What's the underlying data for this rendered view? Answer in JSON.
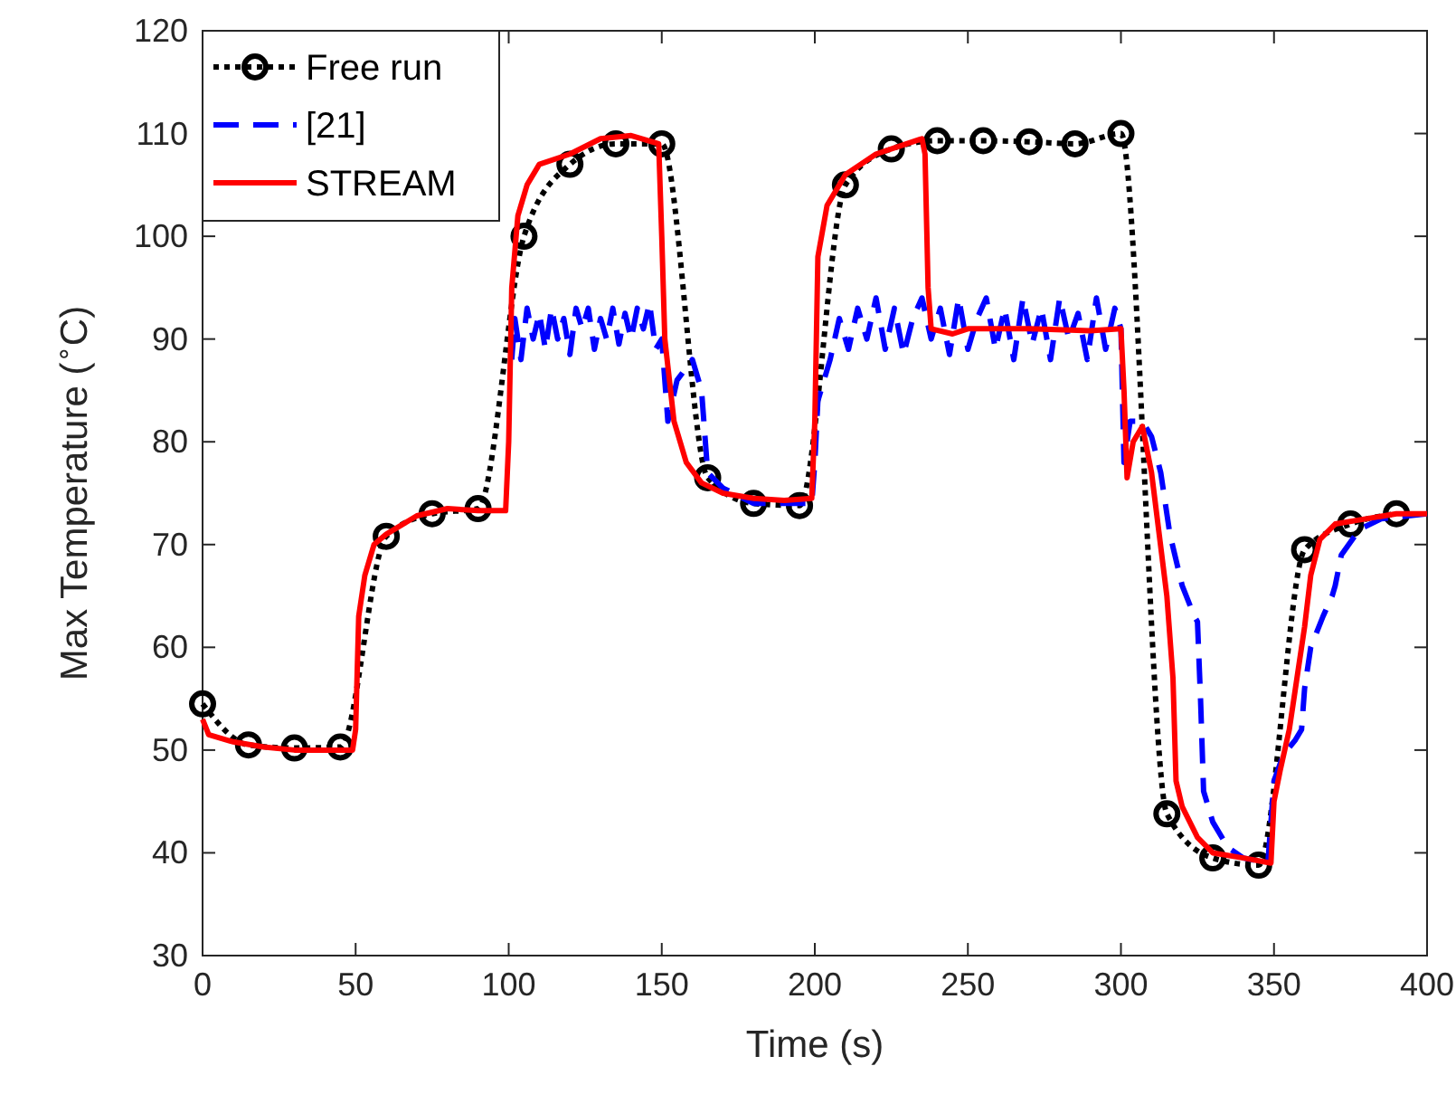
{
  "chart_data": {
    "type": "line",
    "xlabel": "Time (s)",
    "ylabel": "Max Temperature ($^{∘}$C)",
    "xlim": [
      0,
      400
    ],
    "ylim": [
      30,
      120
    ],
    "xticks": [
      0,
      50,
      100,
      150,
      200,
      250,
      300,
      350,
      400
    ],
    "yticks": [
      30,
      40,
      50,
      60,
      70,
      80,
      90,
      100,
      110,
      120
    ],
    "legend": "top left",
    "grid": false,
    "series": [
      {
        "name": "Free run",
        "color": "#000000",
        "line_style": "dotted",
        "marker": "circle",
        "x": [
          0,
          15,
          30,
          45,
          60,
          75,
          90,
          105,
          120,
          135,
          150,
          165,
          180,
          195,
          210,
          225,
          240,
          255,
          270,
          285,
          300,
          315,
          330,
          345,
          360,
          375,
          390
        ],
        "values": [
          54.5,
          50.5,
          50.2,
          50.3,
          70.8,
          73,
          73.5,
          100,
          107,
          109,
          109,
          76.5,
          74,
          73.8,
          105,
          108.5,
          109.3,
          109.3,
          109.2,
          109,
          110,
          43.8,
          39.5,
          38.8,
          69.5,
          72,
          73
        ]
      },
      {
        "name": "[21]",
        "color": "#0000ff",
        "line_style": "dashed",
        "marker": "none",
        "x": [
          101,
          102,
          104,
          106,
          108,
          110,
          112,
          114,
          116,
          118,
          120,
          122,
          124,
          126,
          128,
          130,
          132,
          134,
          136,
          138,
          140,
          142,
          144,
          146,
          148,
          150,
          152,
          155,
          160,
          163,
          165,
          170,
          180,
          190,
          199,
          200,
          201,
          205,
          208,
          211,
          214,
          217,
          220,
          223,
          226,
          229,
          232,
          235,
          238,
          241,
          244,
          247,
          250,
          253,
          256,
          259,
          262,
          265,
          268,
          271,
          274,
          277,
          280,
          283,
          286,
          289,
          292,
          295,
          298,
          300,
          301,
          303,
          307,
          310,
          313,
          316,
          320,
          324,
          325,
          326,
          327,
          330,
          335,
          340,
          348,
          350,
          353,
          357,
          359,
          360,
          362,
          366,
          369,
          370,
          372,
          378,
          385,
          400
        ],
        "values": [
          88,
          92,
          88,
          93,
          90,
          92.5,
          89,
          93,
          90,
          92,
          88.5,
          93,
          91,
          93,
          89,
          92,
          90,
          93,
          89.5,
          92.5,
          90,
          93,
          91,
          93.5,
          89,
          90,
          82,
          86,
          88,
          85,
          77,
          75.5,
          74,
          74,
          74,
          78,
          84,
          88,
          92,
          89,
          93,
          90,
          94,
          89,
          93,
          88.5,
          92,
          94,
          90,
          93,
          88.5,
          94,
          89,
          92,
          94,
          89,
          93,
          88,
          94,
          89.5,
          93,
          88,
          94,
          90,
          92.5,
          88,
          94,
          89,
          93,
          91,
          78,
          82,
          82,
          80.5,
          77,
          71,
          66,
          63,
          62.5,
          55,
          46,
          43,
          40.5,
          39.5,
          39,
          47,
          49.5,
          51,
          52,
          56,
          60,
          63,
          65,
          66,
          69,
          71.5,
          72.5,
          73
        ]
      },
      {
        "name": "STREAM",
        "color": "#ff0000",
        "line_style": "solid",
        "marker": "none",
        "x": [
          0,
          2,
          10,
          20,
          30,
          40,
          49,
          50,
          51,
          53,
          56,
          60,
          70,
          80,
          90,
          99,
          100,
          101,
          103,
          106,
          110,
          120,
          130,
          140,
          149,
          150,
          151,
          154,
          158,
          163,
          170,
          180,
          190,
          199,
          200,
          201,
          204,
          210,
          220,
          230,
          235,
          236,
          237,
          238,
          245,
          250,
          270,
          290,
          300,
          301,
          302,
          304,
          307,
          310,
          315,
          317,
          318,
          320,
          325,
          330,
          340,
          349,
          350,
          352,
          355,
          358,
          360,
          362,
          365,
          370,
          380,
          390,
          400
        ],
        "values": [
          53,
          51.5,
          50.8,
          50.3,
          50,
          50,
          50,
          52,
          63,
          67,
          70,
          71,
          72.8,
          73.5,
          73.3,
          73.3,
          80,
          95,
          102,
          105,
          107,
          108,
          109.5,
          109.8,
          109,
          100,
          90,
          82,
          78,
          76,
          75,
          74.5,
          74.3,
          74.5,
          82,
          98,
          103,
          106,
          108,
          109,
          109.5,
          108,
          95,
          91,
          90.5,
          91,
          91,
          90.8,
          91,
          85,
          76.5,
          80,
          81.5,
          77,
          65,
          57,
          47,
          44.5,
          41.5,
          40,
          39.5,
          39,
          45,
          48,
          52,
          58,
          62,
          67,
          70.5,
          72,
          72.5,
          73,
          73
        ]
      }
    ]
  }
}
